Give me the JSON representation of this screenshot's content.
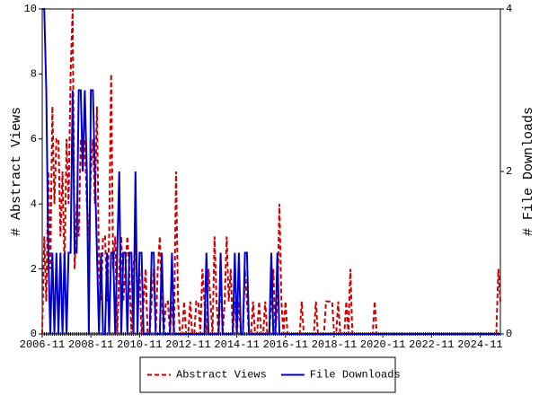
{
  "chart_data": {
    "type": "line",
    "categories": [
      "2006-11",
      null,
      null,
      null,
      null,
      null,
      null,
      null,
      null,
      null,
      null,
      null,
      null,
      null,
      null,
      null,
      null,
      null,
      null,
      null,
      null,
      null,
      null,
      null,
      "2008-11",
      null,
      null,
      null,
      null,
      null,
      null,
      null,
      null,
      null,
      null,
      null,
      null,
      null,
      null,
      null,
      null,
      null,
      null,
      null,
      null,
      null,
      null,
      null,
      "2010-11",
      null,
      null,
      null,
      null,
      null,
      null,
      null,
      null,
      null,
      null,
      null,
      null,
      null,
      null,
      null,
      null,
      null,
      null,
      null,
      null,
      null,
      null,
      null,
      "2012-11",
      null,
      null,
      null,
      null,
      null,
      null,
      null,
      null,
      null,
      null,
      null,
      null,
      null,
      null,
      null,
      null,
      null,
      null,
      null,
      null,
      null,
      null,
      null,
      "2014-11",
      null,
      null,
      null,
      null,
      null,
      null,
      null,
      null,
      null,
      null,
      null,
      null,
      null,
      null,
      null,
      null,
      null,
      null,
      null,
      null,
      null,
      null,
      null,
      "2016-11",
      null,
      null,
      null,
      null,
      null,
      null,
      null,
      null,
      null,
      null,
      null,
      null,
      null,
      null,
      null,
      null,
      null,
      null,
      null,
      null,
      null,
      null,
      null,
      "2018-11",
      null,
      null,
      null,
      null,
      null,
      null,
      null,
      null,
      null,
      null,
      null,
      null,
      null,
      null,
      null,
      null,
      null,
      null,
      null,
      null,
      null,
      null,
      null,
      "2020-11",
      null,
      null,
      null,
      null,
      null,
      null,
      null,
      null,
      null,
      null,
      null,
      null,
      null,
      null,
      null,
      null,
      null,
      null,
      null,
      null,
      null,
      null,
      null,
      "2022-11",
      null,
      null,
      null,
      null,
      null,
      null,
      null,
      null,
      null,
      null,
      null,
      null,
      null,
      null,
      null,
      null,
      null,
      null,
      null,
      null,
      null,
      null,
      null,
      "2024-11",
      null,
      null,
      null,
      null,
      null,
      null,
      null,
      null,
      null,
      null
    ],
    "series": [
      {
        "name": "Abstract Views",
        "color": "#cc0000",
        "style": "dashed",
        "values": [
          0,
          3,
          1,
          5,
          2,
          7,
          4,
          6,
          6,
          3,
          5,
          2,
          6,
          4,
          8,
          10,
          2,
          4,
          3,
          6,
          5,
          6,
          4,
          3,
          5,
          6,
          4,
          7,
          2,
          1,
          3,
          3,
          1,
          3,
          8,
          2,
          3,
          0,
          2,
          3,
          1,
          2,
          3,
          2,
          0,
          2,
          3,
          1,
          2,
          0,
          1,
          2,
          0,
          0,
          1,
          2,
          0,
          2,
          3,
          1,
          0,
          1,
          1,
          0,
          1,
          0,
          5,
          1,
          0,
          0,
          1,
          0,
          0,
          1,
          0,
          0,
          1,
          1,
          0,
          2,
          1,
          0,
          2,
          1,
          0,
          3,
          1,
          0,
          2,
          0,
          1,
          3,
          1,
          2,
          0,
          1,
          0,
          1,
          0,
          0,
          2,
          1,
          0,
          0,
          1,
          0,
          0,
          1,
          0,
          0,
          1,
          0,
          0,
          1,
          2,
          0,
          1,
          4,
          1,
          0,
          1,
          0,
          0,
          0,
          0,
          0,
          0,
          0,
          1,
          0,
          0,
          0,
          0,
          0,
          0,
          1,
          0,
          0,
          0,
          0,
          1,
          1,
          1,
          1,
          0,
          0,
          1,
          0,
          0,
          0,
          1,
          0,
          2,
          0,
          0,
          0,
          0,
          0,
          0,
          0,
          0,
          0,
          0,
          0,
          1,
          0,
          0,
          0,
          0,
          0,
          0,
          0,
          0,
          0,
          0,
          0,
          0,
          0,
          0,
          0,
          0,
          0,
          0,
          0,
          0,
          0,
          0,
          0,
          0,
          0,
          0,
          0,
          0,
          0,
          0,
          0,
          0,
          0,
          0,
          0,
          0,
          0,
          0,
          0,
          0,
          0,
          0,
          0,
          0,
          0,
          0,
          0,
          0,
          0,
          0,
          0,
          0,
          0,
          0,
          0,
          0,
          0,
          0,
          0,
          0,
          2,
          1
        ]
      },
      {
        "name": "File Downloads",
        "color": "#0000cc",
        "style": "solid",
        "axis": "y2",
        "values": [
          4,
          4,
          3,
          1,
          0,
          1,
          0,
          1,
          0,
          1,
          0,
          1,
          0,
          1,
          1,
          3,
          1,
          1,
          3,
          3,
          2,
          3,
          2,
          0,
          3,
          3,
          2,
          1,
          0,
          1,
          0,
          0,
          1,
          0,
          1,
          1,
          0,
          1,
          2,
          0,
          1,
          1,
          0,
          1,
          1,
          0,
          2,
          0,
          1,
          1,
          0,
          0,
          0,
          0,
          1,
          1,
          0,
          0,
          0,
          1,
          0,
          0,
          0,
          0,
          1,
          0,
          0,
          0,
          0,
          0,
          0,
          0,
          0,
          0,
          0,
          0,
          0,
          0,
          0,
          0,
          0,
          1,
          0,
          0,
          0,
          0,
          0,
          0,
          1,
          0,
          0,
          0,
          0,
          0,
          0,
          1,
          0,
          1,
          0,
          0,
          1,
          1,
          0,
          0,
          0,
          0,
          0,
          0,
          0,
          0,
          0,
          0,
          0,
          1,
          0,
          0,
          1,
          0,
          0,
          0,
          0,
          0,
          0,
          0,
          0,
          0,
          0,
          0,
          0,
          0,
          0,
          0,
          0,
          0,
          0,
          0,
          0,
          0,
          0,
          0,
          0,
          0,
          0,
          0,
          0,
          0,
          0,
          0,
          0,
          0,
          0,
          0,
          0,
          0,
          0,
          0,
          0,
          0,
          0,
          0,
          0,
          0,
          0,
          0,
          0,
          0,
          0,
          0,
          0,
          0,
          0,
          0,
          0,
          0,
          0,
          0,
          0,
          0,
          0,
          0,
          0,
          0,
          0,
          0,
          0,
          0,
          0,
          0,
          0,
          0,
          0,
          0,
          0,
          0,
          0,
          0,
          0,
          0,
          0,
          0,
          0,
          0,
          0,
          0,
          0,
          0,
          0,
          0,
          0,
          0,
          0,
          0,
          0,
          0,
          0,
          0,
          0,
          0,
          0,
          0,
          0,
          0,
          0,
          0,
          0,
          0,
          0
        ]
      }
    ],
    "ylabel": "# Abstract Views",
    "y2label": "# File Downloads",
    "ylim": [
      0,
      10
    ],
    "yticks": [
      0,
      2,
      4,
      6,
      8,
      10
    ],
    "y2lim": [
      0,
      4
    ],
    "y2ticks": [
      0,
      2,
      4
    ],
    "grid": false,
    "legend": "bottom"
  }
}
